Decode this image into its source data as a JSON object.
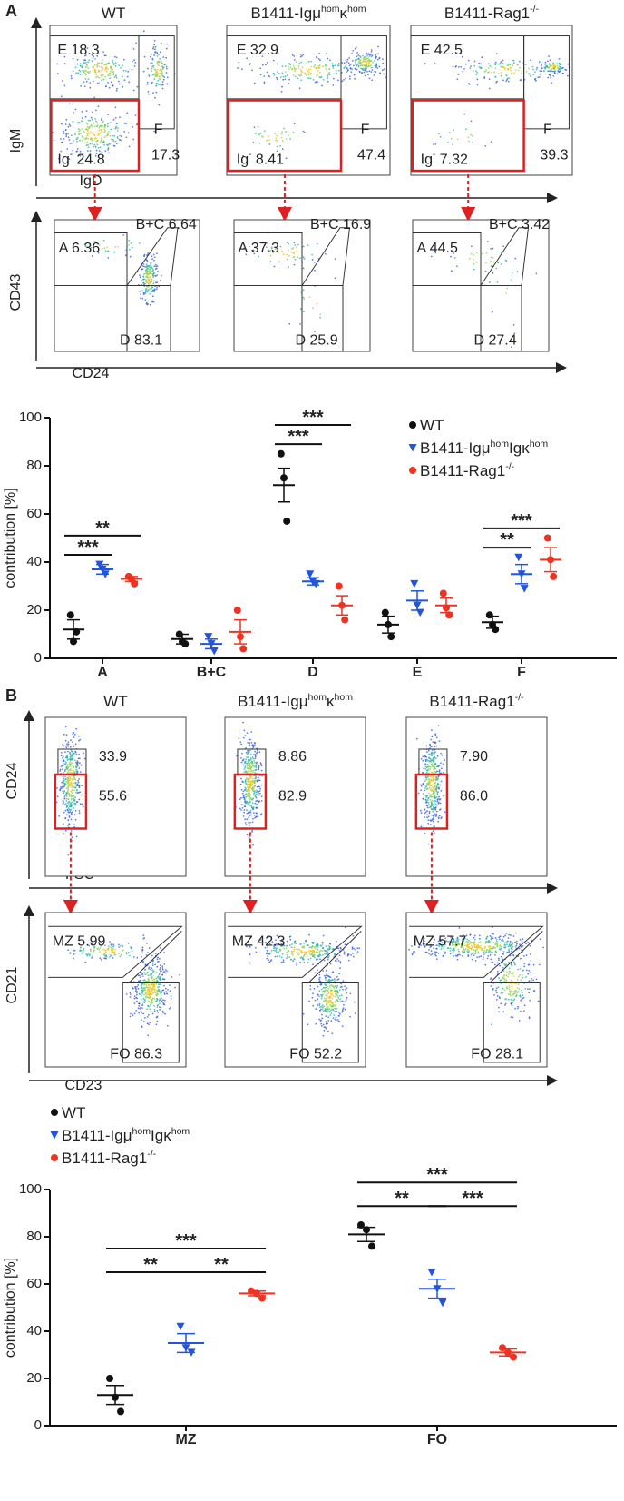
{
  "panels": [
    "A",
    "B"
  ],
  "flow": {
    "rows": [
      {
        "x_axis": "IgD",
        "y_axis": "IgM",
        "plots": [
          {
            "title": [
              "WT"
            ],
            "gates": [
              [
                "E 18.3"
              ],
              [
                "F"
              ],
              [
                "17.3"
              ],
              [
                "Ig",
                "-",
                " 24.8"
              ]
            ]
          },
          {
            "title": [
              "B1411-Igμ",
              "hom",
              "κ",
              "hom"
            ],
            "gates": [
              [
                "E 32.9"
              ],
              [
                "F"
              ],
              [
                "47.4"
              ],
              [
                "Ig",
                "-",
                " 8.41"
              ]
            ]
          },
          {
            "title": [
              "B1411-Rag1",
              "-/-"
            ],
            "gates": [
              [
                "E 42.5"
              ],
              [
                "F"
              ],
              [
                "39.3"
              ],
              [
                "Ig",
                "-",
                " 7.32"
              ]
            ]
          }
        ]
      },
      {
        "x_axis": "CD24",
        "y_axis": "CD43",
        "plots": [
          {
            "gates": [
              [
                "A 6.36"
              ],
              [
                "B+C 6.64"
              ],
              [
                "D 83.1"
              ]
            ]
          },
          {
            "gates": [
              [
                "A 37.3"
              ],
              [
                "B+C 16.9"
              ],
              [
                "D 25.9"
              ]
            ]
          },
          {
            "gates": [
              [
                "A 44.5"
              ],
              [
                "B+C 3.42"
              ],
              [
                "D 27.4"
              ]
            ]
          }
        ]
      },
      {
        "x_axis": "FSC",
        "y_axis": "CD24",
        "plots": [
          {
            "title": [
              "WT"
            ],
            "gates": [
              [
                "33.9"
              ],
              [
                "55.6"
              ]
            ]
          },
          {
            "title": [
              "B1411-Igμ",
              "hom",
              "κ",
              "hom"
            ],
            "gates": [
              [
                "8.86"
              ],
              [
                "82.9"
              ]
            ]
          },
          {
            "title": [
              "B1411-Rag1",
              "-/-"
            ],
            "gates": [
              [
                "7.90"
              ],
              [
                "86.0"
              ]
            ]
          }
        ]
      },
      {
        "x_axis": "CD23",
        "y_axis": "CD21",
        "plots": [
          {
            "gates": [
              [
                "MZ 5.99"
              ],
              [
                "FO 86.3"
              ]
            ]
          },
          {
            "gates": [
              [
                "MZ 42.3"
              ],
              [
                "FO 52.2"
              ]
            ]
          },
          {
            "gates": [
              [
                "MZ 57.7"
              ],
              [
                "FO 28.1"
              ]
            ]
          }
        ]
      }
    ]
  },
  "chart_data": [
    {
      "type": "dot",
      "y_label": "contribution [%]",
      "categories": [
        "A",
        "B+C",
        "D",
        "E",
        "F"
      ],
      "ylim": [
        0,
        100
      ],
      "yticks": [
        0,
        20,
        40,
        60,
        80,
        100
      ],
      "legend": "upper right",
      "series": [
        {
          "name": [
            "WT"
          ],
          "color": "#111111",
          "marker": "circle",
          "values": [
            12,
            8,
            72,
            14,
            15
          ],
          "errors": [
            4,
            2,
            7,
            3.5,
            2.5
          ],
          "points": [
            [
              18,
              7,
              11
            ],
            [
              10,
              7,
              6
            ],
            [
              85,
              75,
              57
            ],
            [
              19,
              14,
              9
            ],
            [
              18,
              14,
              12
            ]
          ]
        },
        {
          "name": [
            "B1411-Igμ",
            "hom",
            "Igκ",
            "hom"
          ],
          "color": "#2255dd",
          "marker": "triangle-down",
          "values": [
            37,
            6,
            32,
            24,
            35
          ],
          "errors": [
            2,
            2,
            1.5,
            4,
            4
          ],
          "points": [
            [
              39,
              37,
              35
            ],
            [
              9,
              6,
              3
            ],
            [
              35,
              32,
              31
            ],
            [
              31,
              22,
              19
            ],
            [
              42,
              35,
              29
            ]
          ]
        },
        {
          "name": [
            "B1411-Rag1",
            "-/-"
          ],
          "color": "#ee3322",
          "marker": "circle",
          "values": [
            33,
            11,
            22,
            22,
            41
          ],
          "errors": [
            1,
            5,
            4,
            3,
            5
          ],
          "points": [
            [
              34,
              33,
              31
            ],
            [
              20,
              9,
              4
            ],
            [
              30,
              22,
              16
            ],
            [
              27,
              21,
              18
            ],
            [
              50,
              41,
              34
            ]
          ]
        }
      ],
      "annotations": [
        {
          "category": "A",
          "labels": [
            "***",
            "**"
          ]
        },
        {
          "category": "D",
          "labels": [
            "***",
            "***"
          ]
        },
        {
          "category": "F",
          "labels": [
            "**",
            "***"
          ]
        }
      ]
    },
    {
      "type": "dot",
      "y_label": "contribution [%]",
      "categories": [
        "MZ",
        "FO"
      ],
      "ylim": [
        0,
        100
      ],
      "yticks": [
        0,
        20,
        40,
        60,
        80,
        100
      ],
      "legend": "upper left",
      "series": [
        {
          "name": [
            "WT"
          ],
          "color": "#111111",
          "marker": "circle",
          "values": [
            13,
            81
          ],
          "errors": [
            4,
            3
          ],
          "points": [
            [
              20,
              12,
              6
            ],
            [
              85,
              83,
              76
            ]
          ]
        },
        {
          "name": [
            "B1411-Igμ",
            "hom",
            "Igκ",
            "hom"
          ],
          "color": "#2255dd",
          "marker": "triangle-down",
          "values": [
            35,
            58
          ],
          "errors": [
            4,
            4
          ],
          "points": [
            [
              42,
              33,
              31
            ],
            [
              65,
              58,
              52
            ]
          ]
        },
        {
          "name": [
            "B1411-Rag1",
            "-/-"
          ],
          "color": "#ee3322",
          "marker": "circle",
          "values": [
            56,
            31
          ],
          "errors": [
            1,
            1.5
          ],
          "points": [
            [
              57,
              56,
              54
            ],
            [
              33,
              31,
              29
            ]
          ]
        }
      ],
      "annotations": [
        {
          "category": "MZ",
          "labels": [
            "**",
            "**",
            "***"
          ]
        },
        {
          "category": "FO",
          "labels": [
            "**",
            "***",
            "***"
          ]
        }
      ]
    }
  ]
}
